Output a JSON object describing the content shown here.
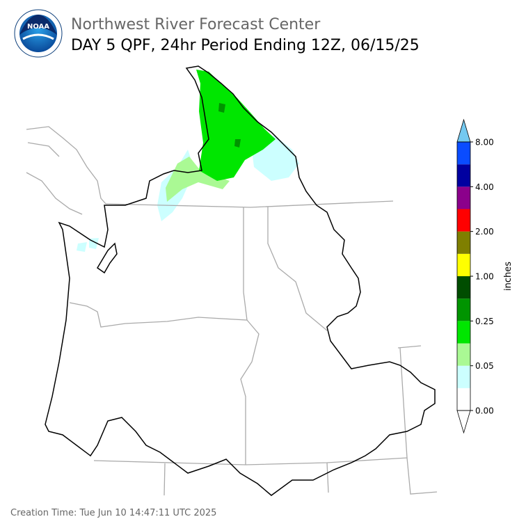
{
  "header": {
    "title": "Northwest River Forecast Center",
    "subtitle": "DAY 5 QPF, 24hr Period Ending 12Z, 06/15/25",
    "logo_text": "NOAA"
  },
  "colorbar": {
    "label": "inches",
    "colors": [
      "#ffffff",
      "#ccffff",
      "#aaf994",
      "#00e600",
      "#009400",
      "#004d00",
      "#ffff00",
      "#7f7f00",
      "#ff0000",
      "#8b008b",
      "#0000a0",
      "#0a4cff"
    ],
    "under_color": "#ffffff",
    "over_color": "#74c9f0",
    "ticks": [
      {
        "value": 0,
        "label": "0.00"
      },
      {
        "value": 0.05,
        "label": "0.05"
      },
      {
        "value": 0.25,
        "label": "0.25"
      },
      {
        "value": 1,
        "label": "1.00"
      },
      {
        "value": 2,
        "label": "2.00"
      },
      {
        "value": 4,
        "label": "4.00"
      },
      {
        "value": 8,
        "label": "8.00"
      }
    ]
  },
  "footer": {
    "creation_time": "Creation Time: Tue Jun 10 14:47:11 UTC 2025"
  }
}
